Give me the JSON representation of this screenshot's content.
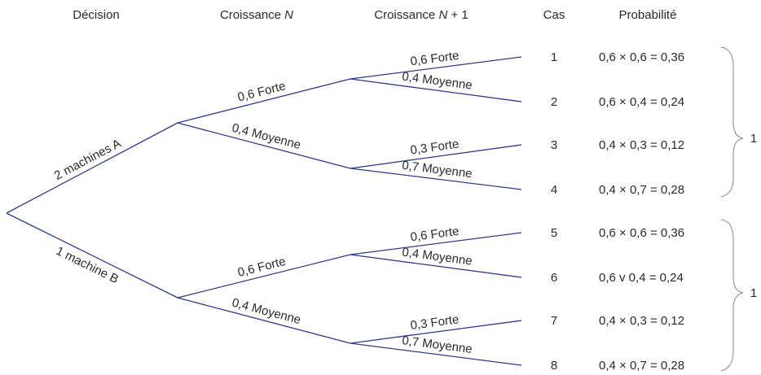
{
  "headers": [
    {
      "label": "Décision"
    },
    {
      "label": "Croissance",
      "italic": "N"
    },
    {
      "label": "Croissance",
      "italic": "N",
      "after": "+ 1"
    },
    {
      "label": "Cas"
    },
    {
      "label": "Probabilité"
    }
  ],
  "decisions": [
    {
      "label": "2 machines A",
      "branches": [
        {
          "label": "0,6 Forte",
          "branches": [
            {
              "label": "0,6 Forte"
            },
            {
              "label": "0,4 Moyenne"
            }
          ]
        },
        {
          "label": "0,4 Moyenne",
          "branches": [
            {
              "label": "0,3 Forte"
            },
            {
              "label": "0,7 Moyenne"
            }
          ]
        }
      ]
    },
    {
      "label": "1 machine B",
      "branches": [
        {
          "label": "0,6 Forte",
          "branches": [
            {
              "label": "0,6 Forte"
            },
            {
              "label": "0,4 Moyenne"
            }
          ]
        },
        {
          "label": "0,4 Moyenne",
          "branches": [
            {
              "label": "0,3 Forte"
            },
            {
              "label": "0,7 Moyenne"
            }
          ]
        }
      ]
    }
  ],
  "cases": [
    {
      "number": 1,
      "probability": "0,6 × 0,6 = 0,36"
    },
    {
      "number": 2,
      "probability": "0,6 × 0,4 = 0,24"
    },
    {
      "number": 3,
      "probability": "0,4 × 0,3 = 0,12"
    },
    {
      "number": 4,
      "probability": "0,4 × 0,7 = 0,28"
    },
    {
      "number": 5,
      "probability": "0,6 × 0,6 = 0,36"
    },
    {
      "number": 6,
      "probability": "0,6 v 0,4 = 0,24"
    },
    {
      "number": 7,
      "probability": "0,4 × 0,3 = 0,12"
    },
    {
      "number": 8,
      "probability": "0,4 × 0,7 = 0,28"
    }
  ],
  "sums": [
    1,
    1
  ]
}
